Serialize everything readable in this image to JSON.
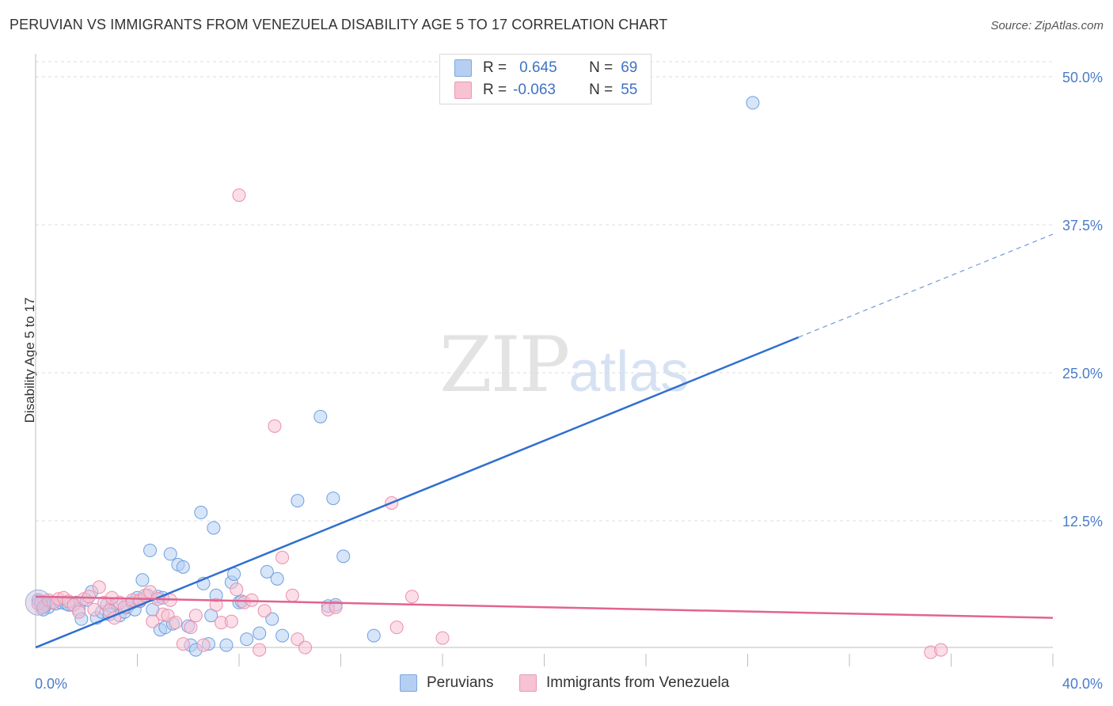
{
  "title": "PERUVIAN VS IMMIGRANTS FROM VENEZUELA DISABILITY AGE 5 TO 17 CORRELATION CHART",
  "source": "Source: ZipAtlas.com",
  "legend_top": {
    "rows": [
      {
        "r_label": "R =",
        "r_value": "0.645",
        "n_label": "N =",
        "n_value": "69",
        "color": "#a8c6f0"
      },
      {
        "r_label": "R =",
        "r_value": "-0.063",
        "n_label": "N =",
        "n_value": "55",
        "color": "#f5b8ca"
      }
    ]
  },
  "watermark": {
    "zip": "ZIP",
    "atlas": "atlas"
  },
  "chart_data": {
    "type": "scatter",
    "xlabel": "",
    "ylabel": "Disability Age 5 to 17",
    "xlim": [
      0,
      40
    ],
    "ylim": [
      0,
      52
    ],
    "x_tick_labels": [
      "0.0%",
      "40.0%"
    ],
    "y_ticks": [
      12.5,
      25.0,
      37.5,
      50.0
    ],
    "y_tick_labels": [
      "12.5%",
      "25.0%",
      "37.5%",
      "50.0%"
    ],
    "grid": true,
    "series": [
      {
        "name": "Peruvians",
        "color": "#6f9fe0",
        "fill": "#b5cff2",
        "trend": {
          "x0": 0,
          "y0": 1.8,
          "x1": 30,
          "y1": 28.0,
          "x_dash_end": 40,
          "y_dash_end": 36.7,
          "color": "#2f6fd0"
        },
        "points": [
          [
            0.1,
            5.8
          ],
          [
            0.2,
            5.5
          ],
          [
            0.4,
            5.4
          ],
          [
            0.5,
            5.2
          ],
          [
            0.6,
            5.6
          ],
          [
            0.8,
            5.5
          ],
          [
            1.0,
            5.6
          ],
          [
            1.2,
            5.5
          ],
          [
            1.4,
            5.4
          ],
          [
            1.6,
            5.6
          ],
          [
            1.7,
            5.0
          ],
          [
            1.8,
            4.2
          ],
          [
            2.0,
            5.8
          ],
          [
            2.2,
            6.5
          ],
          [
            2.4,
            4.3
          ],
          [
            2.6,
            4.8
          ],
          [
            2.8,
            5.4
          ],
          [
            3.0,
            5.3
          ],
          [
            3.2,
            5.5
          ],
          [
            3.3,
            4.5
          ],
          [
            3.5,
            4.8
          ],
          [
            3.6,
            5.2
          ],
          [
            3.8,
            5.6
          ],
          [
            3.9,
            5.0
          ],
          [
            4.0,
            6.0
          ],
          [
            4.1,
            5.7
          ],
          [
            4.2,
            7.5
          ],
          [
            4.4,
            6.2
          ],
          [
            4.5,
            10.0
          ],
          [
            4.6,
            5.0
          ],
          [
            4.8,
            6.1
          ],
          [
            4.9,
            3.3
          ],
          [
            5.1,
            3.5
          ],
          [
            5.3,
            9.7
          ],
          [
            5.4,
            3.8
          ],
          [
            5.6,
            8.8
          ],
          [
            5.8,
            8.6
          ],
          [
            6.1,
            2.0
          ],
          [
            6.3,
            1.6
          ],
          [
            6.5,
            13.2
          ],
          [
            6.6,
            7.2
          ],
          [
            6.8,
            2.1
          ],
          [
            6.9,
            4.5
          ],
          [
            7.0,
            11.9
          ],
          [
            7.1,
            6.2
          ],
          [
            7.5,
            2.0
          ],
          [
            7.7,
            7.3
          ],
          [
            7.8,
            8.0
          ],
          [
            8.0,
            5.6
          ],
          [
            8.1,
            5.7
          ],
          [
            8.3,
            2.5
          ],
          [
            8.8,
            3.0
          ],
          [
            9.1,
            8.2
          ],
          [
            9.3,
            4.2
          ],
          [
            9.5,
            7.6
          ],
          [
            9.7,
            2.8
          ],
          [
            10.3,
            14.2
          ],
          [
            11.2,
            21.3
          ],
          [
            11.5,
            5.3
          ],
          [
            11.7,
            14.4
          ],
          [
            11.8,
            5.4
          ],
          [
            12.1,
            9.5
          ],
          [
            13.3,
            2.8
          ],
          [
            28.2,
            47.8
          ],
          [
            1.3,
            5.4
          ],
          [
            2.9,
            4.6
          ],
          [
            0.3,
            5.0
          ],
          [
            5.0,
            6.0
          ],
          [
            6.0,
            3.6
          ]
        ]
      },
      {
        "name": "Immigrants from Venezuela",
        "color": "#eb8fac",
        "fill": "#f7c3d3",
        "trend": {
          "x0": 0,
          "y0": 6.1,
          "x1": 40,
          "y1": 4.3,
          "color": "#e2648e"
        },
        "points": [
          [
            0.1,
            5.5
          ],
          [
            0.3,
            5.2
          ],
          [
            0.5,
            5.8
          ],
          [
            0.7,
            5.6
          ],
          [
            0.9,
            5.9
          ],
          [
            1.1,
            6.0
          ],
          [
            1.3,
            5.7
          ],
          [
            1.5,
            5.4
          ],
          [
            1.7,
            4.8
          ],
          [
            1.9,
            5.9
          ],
          [
            2.1,
            6.1
          ],
          [
            2.3,
            5.0
          ],
          [
            2.5,
            6.9
          ],
          [
            2.7,
            5.6
          ],
          [
            2.9,
            4.9
          ],
          [
            3.1,
            4.3
          ],
          [
            3.3,
            5.6
          ],
          [
            3.5,
            5.2
          ],
          [
            3.8,
            5.8
          ],
          [
            4.1,
            5.8
          ],
          [
            4.3,
            6.2
          ],
          [
            4.5,
            6.5
          ],
          [
            4.6,
            4.0
          ],
          [
            4.8,
            5.9
          ],
          [
            5.0,
            4.6
          ],
          [
            5.2,
            4.5
          ],
          [
            5.3,
            5.8
          ],
          [
            5.5,
            3.9
          ],
          [
            5.8,
            2.1
          ],
          [
            6.1,
            3.5
          ],
          [
            6.3,
            4.5
          ],
          [
            6.6,
            2.0
          ],
          [
            7.1,
            5.4
          ],
          [
            7.3,
            3.9
          ],
          [
            7.7,
            4.0
          ],
          [
            7.9,
            6.7
          ],
          [
            8.2,
            5.6
          ],
          [
            8.5,
            5.8
          ],
          [
            8.8,
            1.6
          ],
          [
            9.0,
            4.9
          ],
          [
            9.4,
            20.5
          ],
          [
            9.7,
            9.4
          ],
          [
            10.1,
            6.2
          ],
          [
            10.3,
            2.5
          ],
          [
            10.6,
            1.8
          ],
          [
            11.5,
            5.0
          ],
          [
            11.8,
            5.2
          ],
          [
            14.0,
            14.0
          ],
          [
            14.2,
            3.5
          ],
          [
            14.8,
            6.1
          ],
          [
            16.0,
            2.6
          ],
          [
            35.2,
            1.4
          ],
          [
            35.6,
            1.6
          ],
          [
            8.0,
            40.0
          ],
          [
            3.0,
            6.0
          ]
        ]
      }
    ]
  },
  "bottom_legend": [
    {
      "label": "Peruvians",
      "color": "#a8c6f0",
      "border": "#7ea6de"
    },
    {
      "label": "Immigrants from Venezuela",
      "color": "#f7c3d3",
      "border": "#e89ab3"
    }
  ]
}
